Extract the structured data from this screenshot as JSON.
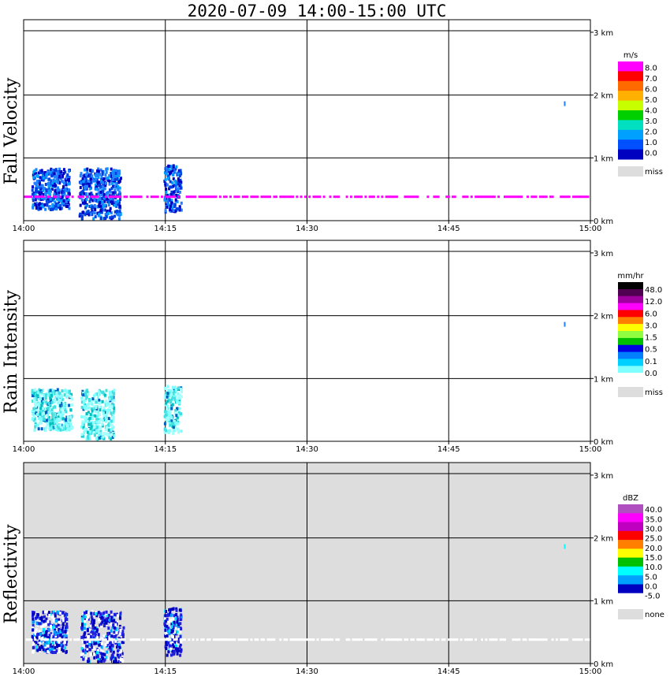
{
  "title": "2020-07-09   14:00-15:00 UTC",
  "x_ticks": [
    "14:00",
    "14:15",
    "14:30",
    "14:45",
    "15:00"
  ],
  "y_ticks": [
    "0 km",
    "1 km",
    "2 km",
    "3 km"
  ],
  "chart_data": [
    {
      "type": "heatmap",
      "title": "Fall Velocity",
      "ylabel": "Fall Velocity",
      "xlim": [
        "14:00",
        "15:00"
      ],
      "ylim_km": [
        0,
        3.2
      ],
      "background": "#ffffff",
      "colorbar": {
        "unit": "m/s",
        "labels": [
          "8.0",
          "7.0",
          "6.0",
          "5.0",
          "4.0",
          "3.0",
          "2.0",
          "1.0",
          "0.0"
        ],
        "colors": [
          "#ff00ff",
          "#ff0000",
          "#ff6a00",
          "#ffb000",
          "#c8ff00",
          "#00d000",
          "#00e0c0",
          "#00a0ff",
          "#0050ff",
          "#0000c0"
        ],
        "miss_label": "miss",
        "miss_color": "#dddddd"
      },
      "features": [
        {
          "kind": "cluster",
          "t": [
            0.8,
            4.8
          ],
          "z": [
            0.2,
            0.85
          ],
          "value": "1.0-2.0"
        },
        {
          "kind": "cluster",
          "t": [
            5.8,
            10.2
          ],
          "z": [
            0.05,
            0.85
          ],
          "value": "1.0-2.0"
        },
        {
          "kind": "cluster",
          "t": [
            14.8,
            16.6
          ],
          "z": [
            0.15,
            0.9
          ],
          "value": "1.0-2.0"
        },
        {
          "kind": "layer",
          "t": [
            0,
            60
          ],
          "z": 0.38,
          "value": ">8.0"
        }
      ]
    },
    {
      "type": "heatmap",
      "title": "Rain Intensity",
      "ylabel": "Rain Intensity",
      "xlim": [
        "14:00",
        "15:00"
      ],
      "ylim_km": [
        0,
        3.2
      ],
      "background": "#ffffff",
      "colorbar": {
        "unit": "mm/hr",
        "labels": [
          "48.0",
          "12.0",
          "6.0",
          "3.0",
          "1.5",
          "0.5",
          "0.1",
          "0.0"
        ],
        "colors": [
          "#000000",
          "#500050",
          "#a000a0",
          "#ff00ff",
          "#ff0000",
          "#ff8000",
          "#ffff00",
          "#90ff40",
          "#00c000",
          "#0000e0",
          "#0080ff",
          "#00d0ff",
          "#80ffff",
          "#ffffff"
        ],
        "miss_label": "miss",
        "miss_color": "#dddddd"
      },
      "features": [
        {
          "kind": "cluster",
          "t": [
            0.8,
            5.0
          ],
          "z": [
            0.2,
            0.85
          ],
          "value": "0.0-0.1"
        },
        {
          "kind": "cluster",
          "t": [
            6.0,
            9.5
          ],
          "z": [
            0.05,
            0.85
          ],
          "value": "0.0-0.1"
        },
        {
          "kind": "cluster",
          "t": [
            14.8,
            16.6
          ],
          "z": [
            0.15,
            0.9
          ],
          "value": "0.1-0.5"
        }
      ]
    },
    {
      "type": "heatmap",
      "title": "Reflectivity",
      "ylabel": "Reflectivity",
      "xlim": [
        "14:00",
        "15:00"
      ],
      "ylim_km": [
        0,
        3.2
      ],
      "background": "#dddddd",
      "colorbar": {
        "unit": "dBZ",
        "labels": [
          "40.0",
          "35.0",
          "30.0",
          "25.0",
          "20.0",
          "15.0",
          "10.0",
          "5.0",
          "0.0",
          "-5.0"
        ],
        "colors": [
          "#b050c0",
          "#ff00ff",
          "#c000c0",
          "#ff0000",
          "#ff8000",
          "#ffff00",
          "#00c000",
          "#00ffff",
          "#00a0ff",
          "#0000c0",
          "#ffffff"
        ],
        "none_label": "none",
        "none_color": "#dddddd"
      },
      "features": [
        {
          "kind": "cluster",
          "t": [
            0.8,
            4.5
          ],
          "z": [
            0.2,
            0.85
          ],
          "value": "-5.0-10.0"
        },
        {
          "kind": "cluster",
          "t": [
            6.0,
            10.5
          ],
          "z": [
            0.05,
            0.85
          ],
          "value": "-5.0-5.0"
        },
        {
          "kind": "cluster",
          "t": [
            14.8,
            16.6
          ],
          "z": [
            0.15,
            0.9
          ],
          "value": "5.0-15.0"
        },
        {
          "kind": "layer",
          "t": [
            0,
            60
          ],
          "z": 0.38,
          "value": "<-5.0"
        }
      ]
    }
  ]
}
